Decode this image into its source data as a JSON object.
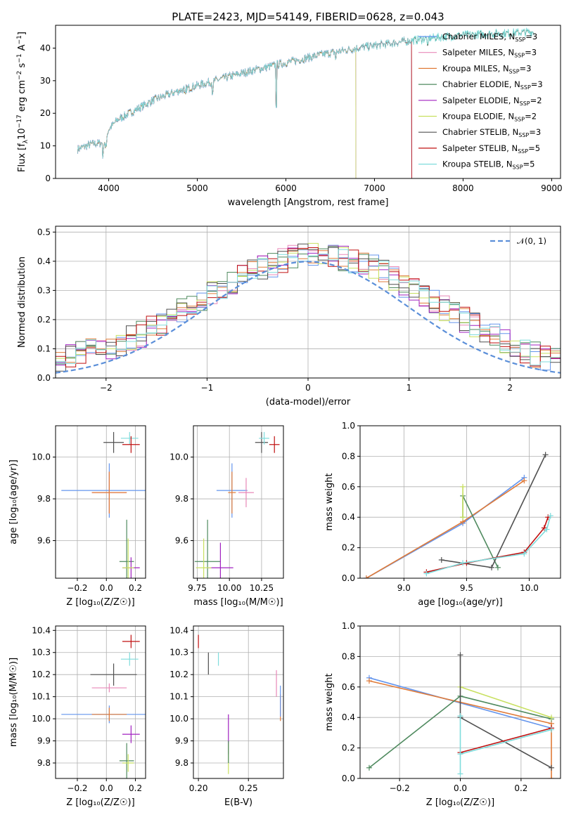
{
  "figure_title": "PLATE=2423, MJD=54149, FIBERID=0628, z=0.043",
  "colors": {
    "Chabrier MILES": "#6495ed",
    "Salpeter MILES": "#e888b8",
    "Kroupa MILES": "#e07b39",
    "Chabrier ELODIE": "#4f8a5f",
    "Salpeter ELODIE": "#a020c0",
    "Kroupa ELODIE": "#c8e060",
    "Chabrier STELIB": "#505050",
    "Salpeter STELIB": "#c01010",
    "Kroupa STELIB": "#7fdcdc"
  },
  "chart_data": [
    {
      "id": "spectrum",
      "type": "line",
      "xlabel": "wavelength [Angstrom, rest frame]",
      "ylabel_parts": {
        "main": "Flux [f",
        "sub1": "λ",
        "mid": "10",
        "sup1": "−17",
        "rest": " erg cm",
        "sup2": "−2",
        "s": " s",
        "sup3": "−1",
        "A": " A",
        "sup4": "−1",
        "end": "]"
      },
      "xlim": [
        3400,
        9100
      ],
      "ylim": [
        0,
        47
      ],
      "xticks": [
        4000,
        5000,
        6000,
        7000,
        8000,
        9000
      ],
      "yticks": [
        0,
        10,
        20,
        30,
        40
      ],
      "legend": {
        "placement": "top-right",
        "entries": [
          {
            "model": "Chabrier MILES",
            "label": "Chabrier MILES, N",
            "sub": "SSP",
            "tail": "=3"
          },
          {
            "model": "Salpeter MILES",
            "label": "Salpeter MILES, N",
            "sub": "SSP",
            "tail": "=3"
          },
          {
            "model": "Kroupa MILES",
            "label": "Kroupa MILES, N",
            "sub": "SSP",
            "tail": "=3"
          },
          {
            "model": "Chabrier ELODIE",
            "label": "Chabrier ELODIE, N",
            "sub": "SSP",
            "tail": "=3"
          },
          {
            "model": "Salpeter ELODIE",
            "label": "Salpeter ELODIE, N",
            "sub": "SSP",
            "tail": "=2"
          },
          {
            "model": "Kroupa ELODIE",
            "label": "Kroupa ELODIE, N",
            "sub": "SSP",
            "tail": "=2"
          },
          {
            "model": "Chabrier STELIB",
            "label": "Chabrier STELIB, N",
            "sub": "SSP",
            "tail": "=3"
          },
          {
            "model": "Salpeter STELIB",
            "label": "Salpeter STELIB, N",
            "sub": "SSP",
            "tail": "=5"
          },
          {
            "model": "Kroupa STELIB",
            "label": "Kroupa STELIB, N",
            "sub": "SSP",
            "tail": "=5"
          }
        ]
      },
      "continuum": [
        [
          3650,
          9
        ],
        [
          3800,
          10.5
        ],
        [
          3950,
          11
        ],
        [
          4000,
          15
        ],
        [
          4100,
          18
        ],
        [
          4300,
          21
        ],
        [
          4500,
          24
        ],
        [
          4800,
          27
        ],
        [
          5200,
          30
        ],
        [
          5600,
          33
        ],
        [
          6000,
          35.5
        ],
        [
          6400,
          38
        ],
        [
          6800,
          40
        ],
        [
          7200,
          41.5
        ],
        [
          7600,
          43
        ],
        [
          8000,
          44
        ],
        [
          8400,
          44.5
        ],
        [
          8800,
          45
        ]
      ],
      "series_cutoffs": {
        "Kroupa ELODIE": 6790,
        "Kroupa MILES": 7420,
        "Salpeter MILES": 7420,
        "Chabrier MILES": 7420,
        "Salpeter STELIB": 7420,
        "Salpeter ELODIE": 6790,
        "Chabrier ELODIE": 8800,
        "Chabrier STELIB": 8800,
        "Kroupa STELIB": 8800
      }
    },
    {
      "id": "residuals",
      "type": "step",
      "xlabel": "(data-model)/error",
      "ylabel": "Normed distribution",
      "xlim": [
        -2.5,
        2.5
      ],
      "ylim": [
        0,
        0.52
      ],
      "xticks": [
        -2,
        -1,
        0,
        1,
        2
      ],
      "yticks": [
        0.0,
        0.1,
        0.2,
        0.3,
        0.4,
        0.5
      ],
      "normal_curve": {
        "label": "𝒩(0, 1)",
        "color": "#5b8fd9",
        "mean": 0,
        "sigma": 1
      },
      "bin_width": 0.1,
      "base_counts": [
        0.03,
        0.035,
        0.04,
        0.045,
        0.05,
        0.06,
        0.07,
        0.08,
        0.09,
        0.1,
        0.11,
        0.12,
        0.135,
        0.15,
        0.17,
        0.19,
        0.21,
        0.23,
        0.25,
        0.27,
        0.29,
        0.31,
        0.33,
        0.35,
        0.37,
        0.38,
        0.39,
        0.4,
        0.41,
        0.42,
        0.43,
        0.43,
        0.42,
        0.41,
        0.4,
        0.39,
        0.38,
        0.36,
        0.34,
        0.32,
        0.3,
        0.28,
        0.26,
        0.24,
        0.22,
        0.2,
        0.18,
        0.16,
        0.14,
        0.125,
        0.11,
        0.095,
        0.08,
        0.07,
        0.06,
        0.05,
        0.045,
        0.04,
        0.035,
        0.03
      ]
    },
    {
      "id": "age-vs-Z",
      "type": "errorbar",
      "xlabel": "Z [log₁₀(Z/Z☉)]",
      "ylabel": "age  [log₁₀(age/yr)]",
      "xlim": [
        -0.35,
        0.27
      ],
      "ylim": [
        9.42,
        10.15
      ],
      "xticks": [
        -0.2,
        0.0,
        0.2
      ],
      "yticks": [
        9.6,
        9.8,
        10.0
      ],
      "points": [
        {
          "model": "Chabrier MILES",
          "x": 0.02,
          "y": 9.84,
          "xerr": 0.33,
          "yerr": 0.13
        },
        {
          "model": "Salpeter MILES",
          "x": 0.02,
          "y": 9.83,
          "xerr": 0.12,
          "yerr": 0.1
        },
        {
          "model": "Kroupa MILES",
          "x": 0.02,
          "y": 9.83,
          "xerr": 0.12,
          "yerr": 0.1
        },
        {
          "model": "Chabrier STELIB",
          "x": 0.05,
          "y": 10.07,
          "xerr": 0.07,
          "yerr": 0.05
        },
        {
          "model": "Kroupa STELIB",
          "x": 0.16,
          "y": 10.09,
          "xerr": 0.06,
          "yerr": 0.03
        },
        {
          "model": "Salpeter STELIB",
          "x": 0.17,
          "y": 10.06,
          "xerr": 0.06,
          "yerr": 0.04
        },
        {
          "model": "Chabrier ELODIE",
          "x": 0.14,
          "y": 9.5,
          "xerr": 0.05,
          "yerr": 0.2
        },
        {
          "model": "Salpeter ELODIE",
          "x": 0.17,
          "y": 9.47,
          "xerr": 0.06,
          "yerr": 0.05
        },
        {
          "model": "Kroupa ELODIE",
          "x": 0.15,
          "y": 9.47,
          "xerr": 0.04,
          "yerr": 0.14
        }
      ]
    },
    {
      "id": "age-vs-mass",
      "type": "errorbar",
      "xlabel": "mass [log₁₀(M/M☉)]",
      "xlim": [
        9.72,
        10.42
      ],
      "ylim": [
        9.42,
        10.15
      ],
      "xticks": [
        9.75,
        10.0,
        10.25
      ],
      "yticks": [
        9.6,
        9.8,
        10.0
      ],
      "points": [
        {
          "model": "Chabrier MILES",
          "x": 10.02,
          "y": 9.84,
          "xerr": 0.12,
          "yerr": 0.13
        },
        {
          "model": "Salpeter MILES",
          "x": 10.13,
          "y": 9.83,
          "xerr": 0.06,
          "yerr": 0.07
        },
        {
          "model": "Kroupa MILES",
          "x": 10.02,
          "y": 9.83,
          "xerr": 0.03,
          "yerr": 0.1
        },
        {
          "model": "Chabrier STELIB",
          "x": 10.25,
          "y": 10.07,
          "xerr": 0.05,
          "yerr": 0.05
        },
        {
          "model": "Kroupa STELIB",
          "x": 10.27,
          "y": 10.09,
          "xerr": 0.04,
          "yerr": 0.03
        },
        {
          "model": "Salpeter STELIB",
          "x": 10.35,
          "y": 10.06,
          "xerr": 0.04,
          "yerr": 0.04
        },
        {
          "model": "Chabrier ELODIE",
          "x": 9.83,
          "y": 9.5,
          "xerr": 0.1,
          "yerr": 0.2
        },
        {
          "model": "Salpeter ELODIE",
          "x": 9.93,
          "y": 9.47,
          "xerr": 0.1,
          "yerr": 0.12
        },
        {
          "model": "Kroupa ELODIE",
          "x": 9.8,
          "y": 9.47,
          "xerr": 0.06,
          "yerr": 0.14
        }
      ]
    },
    {
      "id": "weight-vs-age",
      "type": "line",
      "xlabel": "age  [log₁₀(age/yr)]",
      "ylabel": "mass weight",
      "xlim": [
        8.65,
        10.25
      ],
      "ylim": [
        0,
        1
      ],
      "xticks": [
        9.0,
        9.5,
        10.0
      ],
      "yticks": [
        0.0,
        0.2,
        0.4,
        0.6,
        0.8,
        1.0
      ],
      "series": [
        {
          "model": "Chabrier MILES",
          "points": [
            [
              8.7,
              0.0
            ],
            [
              9.47,
              0.36
            ],
            [
              9.96,
              0.66
            ]
          ]
        },
        {
          "model": "Kroupa MILES",
          "points": [
            [
              8.7,
              0.0
            ],
            [
              9.47,
              0.37
            ],
            [
              9.96,
              0.64
            ]
          ]
        },
        {
          "model": "Chabrier ELODIE",
          "points": [
            [
              9.47,
              0.4
            ],
            [
              9.47,
              0.54
            ],
            [
              9.75,
              0.07
            ]
          ]
        },
        {
          "model": "Kroupa ELODIE",
          "points": [
            [
              9.47,
              0.6
            ],
            [
              9.47,
              0.4
            ]
          ]
        },
        {
          "model": "Chabrier STELIB",
          "points": [
            [
              9.3,
              0.12
            ],
            [
              9.7,
              0.07
            ],
            [
              10.13,
              0.81
            ]
          ]
        },
        {
          "model": "Salpeter STELIB",
          "points": [
            [
              9.18,
              0.04
            ],
            [
              9.5,
              0.1
            ],
            [
              9.96,
              0.17
            ],
            [
              10.12,
              0.33
            ],
            [
              10.15,
              0.4
            ]
          ]
        },
        {
          "model": "Kroupa STELIB",
          "points": [
            [
              9.18,
              0.03
            ],
            [
              9.47,
              0.1
            ],
            [
              9.96,
              0.16
            ],
            [
              10.14,
              0.32
            ],
            [
              10.17,
              0.41
            ]
          ]
        }
      ]
    },
    {
      "id": "mass-vs-Z",
      "type": "errorbar",
      "xlabel": "Z [log₁₀(Z/Z☉)]",
      "ylabel": "mass [log₁₀(M/M☉)]",
      "xlim": [
        -0.35,
        0.27
      ],
      "ylim": [
        9.73,
        10.42
      ],
      "xticks": [
        -0.2,
        0.0,
        0.2
      ],
      "yticks": [
        9.8,
        9.9,
        10.0,
        10.1,
        10.2,
        10.3,
        10.4
      ],
      "points": [
        {
          "model": "Chabrier MILES",
          "x": 0.02,
          "y": 10.02,
          "xerr": 0.33,
          "yerr": 0.04
        },
        {
          "model": "Salpeter MILES",
          "x": 0.02,
          "y": 10.14,
          "xerr": 0.12,
          "yerr": 0.02
        },
        {
          "model": "Kroupa MILES",
          "x": 0.02,
          "y": 10.02,
          "xerr": 0.12,
          "yerr": 0.03
        },
        {
          "model": "Chabrier STELIB",
          "x": 0.05,
          "y": 10.2,
          "xerr": 0.16,
          "yerr": 0.05
        },
        {
          "model": "Kroupa STELIB",
          "x": 0.16,
          "y": 10.27,
          "xerr": 0.06,
          "yerr": 0.03
        },
        {
          "model": "Salpeter STELIB",
          "x": 0.17,
          "y": 10.35,
          "xerr": 0.06,
          "yerr": 0.03
        },
        {
          "model": "Salpeter ELODIE",
          "x": 0.17,
          "y": 9.93,
          "xerr": 0.06,
          "yerr": 0.04
        },
        {
          "model": "Chabrier ELODIE",
          "x": 0.14,
          "y": 9.81,
          "xerr": 0.05,
          "yerr": 0.08
        },
        {
          "model": "Kroupa ELODIE",
          "x": 0.15,
          "y": 9.8,
          "xerr": 0.04,
          "yerr": 0.04
        }
      ]
    },
    {
      "id": "mass-vs-EBV",
      "type": "errorbar",
      "xlabel": "E(B-V)",
      "xlim": [
        0.195,
        0.285
      ],
      "ylim": [
        9.73,
        10.42
      ],
      "xticks": [
        0.2,
        0.25
      ],
      "yticks": [
        9.8,
        9.9,
        10.0,
        10.1,
        10.2,
        10.3,
        10.4
      ],
      "points": [
        {
          "model": "Salpeter STELIB",
          "x": 0.2,
          "y": 10.35,
          "xerr": 0.0,
          "yerr": 0.03
        },
        {
          "model": "Chabrier STELIB",
          "x": 0.21,
          "y": 10.25,
          "xerr": 0.0,
          "yerr": 0.05
        },
        {
          "model": "Kroupa STELIB",
          "x": 0.22,
          "y": 10.27,
          "xerr": 0.0,
          "yerr": 0.03
        },
        {
          "model": "Salpeter MILES",
          "x": 0.278,
          "y": 10.16,
          "xerr": 0.0,
          "yerr": 0.06
        },
        {
          "model": "Kroupa MILES",
          "x": 0.282,
          "y": 10.05,
          "xerr": 0.0,
          "yerr": 0.06
        },
        {
          "model": "Chabrier MILES",
          "x": 0.282,
          "y": 10.08,
          "xerr": 0.0,
          "yerr": 0.07
        },
        {
          "model": "Salpeter ELODIE",
          "x": 0.23,
          "y": 9.93,
          "xerr": 0.0,
          "yerr": 0.09
        },
        {
          "model": "Kroupa ELODIE",
          "x": 0.23,
          "y": 9.82,
          "xerr": 0.0,
          "yerr": 0.07
        },
        {
          "model": "Chabrier ELODIE",
          "x": 0.23,
          "y": 9.85,
          "xerr": 0.0,
          "yerr": 0.05
        }
      ]
    },
    {
      "id": "weight-vs-Z",
      "type": "line",
      "xlabel": "Z [log₁₀(Z/Z☉)]",
      "ylabel": "mass weight",
      "xlim": [
        -0.33,
        0.33
      ],
      "ylim": [
        0,
        1
      ],
      "xticks": [
        -0.2,
        0.0,
        0.2
      ],
      "yticks": [
        0.0,
        0.2,
        0.4,
        0.6,
        0.8,
        1.0
      ],
      "series": [
        {
          "model": "Chabrier MILES",
          "points": [
            [
              -0.3,
              0.66
            ],
            [
              0.3,
              0.33
            ]
          ]
        },
        {
          "model": "Kroupa MILES",
          "points": [
            [
              -0.3,
              0.64
            ],
            [
              0.3,
              0.36
            ],
            [
              0.3,
              0.0
            ]
          ]
        },
        {
          "model": "Chabrier ELODIE",
          "points": [
            [
              -0.3,
              0.07
            ],
            [
              0.0,
              0.54
            ],
            [
              0.3,
              0.39
            ]
          ]
        },
        {
          "model": "Kroupa ELODIE",
          "points": [
            [
              0.0,
              0.6
            ],
            [
              0.3,
              0.4
            ]
          ]
        },
        {
          "model": "Chabrier STELIB",
          "points": [
            [
              0.0,
              0.81
            ],
            [
              0.0,
              0.4
            ],
            [
              0.3,
              0.07
            ]
          ]
        },
        {
          "model": "Salpeter STELIB",
          "points": [
            [
              0.0,
              0.17
            ],
            [
              0.3,
              0.33
            ]
          ]
        },
        {
          "model": "Kroupa STELIB",
          "points": [
            [
              0.0,
              0.03
            ],
            [
              0.0,
              0.41
            ],
            [
              0.0,
              0.16
            ],
            [
              0.3,
              0.32
            ]
          ]
        }
      ]
    }
  ]
}
